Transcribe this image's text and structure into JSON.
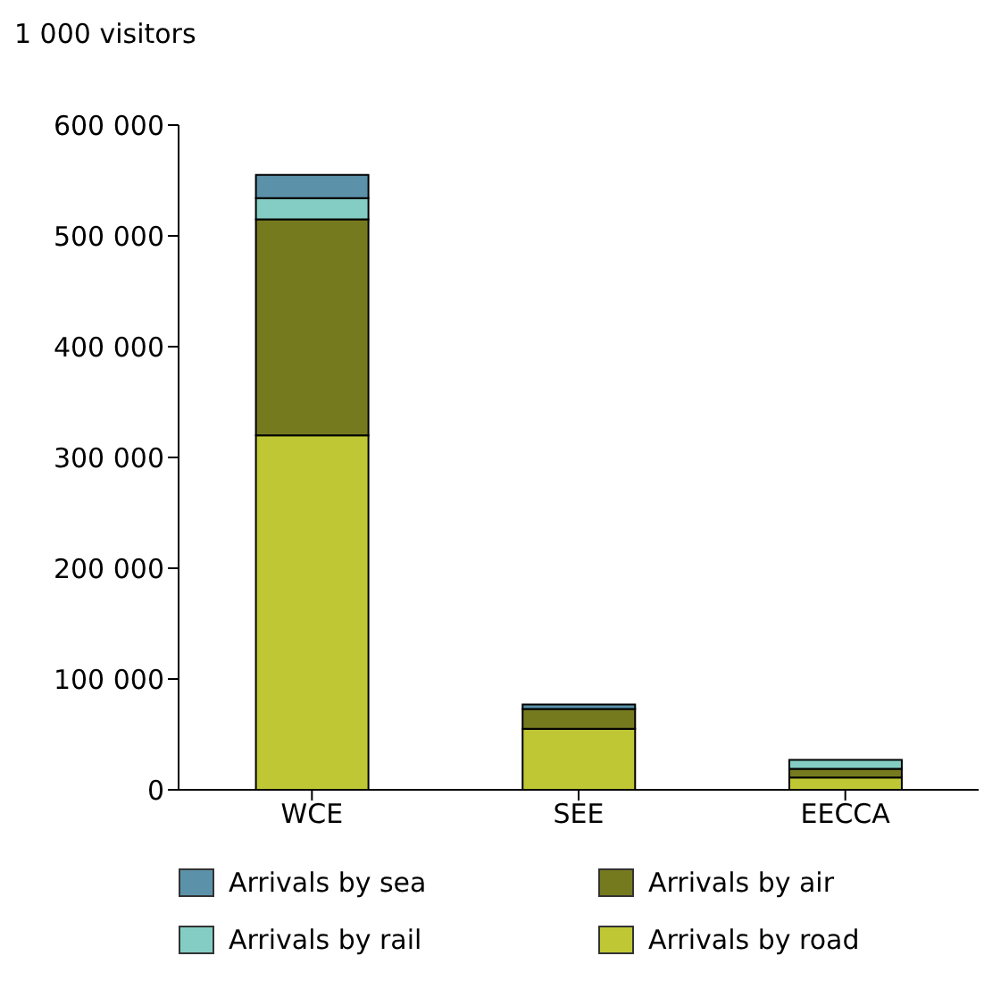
{
  "chart_data": {
    "type": "bar",
    "ylabel": "1 000 visitors",
    "categories": [
      "WCE",
      "SEE",
      "EECCA"
    ],
    "stacked": true,
    "legend": "bottom",
    "grid": false,
    "ylim": [
      0,
      600000
    ],
    "yticks": [
      {
        "value": 0,
        "label": "0"
      },
      {
        "value": 100000,
        "label": "100 000"
      },
      {
        "value": 200000,
        "label": "200 000"
      },
      {
        "value": 300000,
        "label": "300 000"
      },
      {
        "value": 400000,
        "label": "400 000"
      },
      {
        "value": 500000,
        "label": "500 000"
      },
      {
        "value": 600000,
        "label": "600 000"
      }
    ],
    "series": [
      {
        "name": "Arrivals by road",
        "color": "#bfc834",
        "values": [
          320000,
          55000,
          11000
        ]
      },
      {
        "name": "Arrivals by air",
        "color": "#767a1f",
        "values": [
          195000,
          18000,
          8000
        ]
      },
      {
        "name": "Arrivals by rail",
        "color": "#84cdc4",
        "values": [
          19000,
          null,
          8000
        ]
      },
      {
        "name": "Arrivals by sea",
        "color": "#5b92aa",
        "values": [
          21000,
          4000,
          null
        ]
      }
    ]
  }
}
